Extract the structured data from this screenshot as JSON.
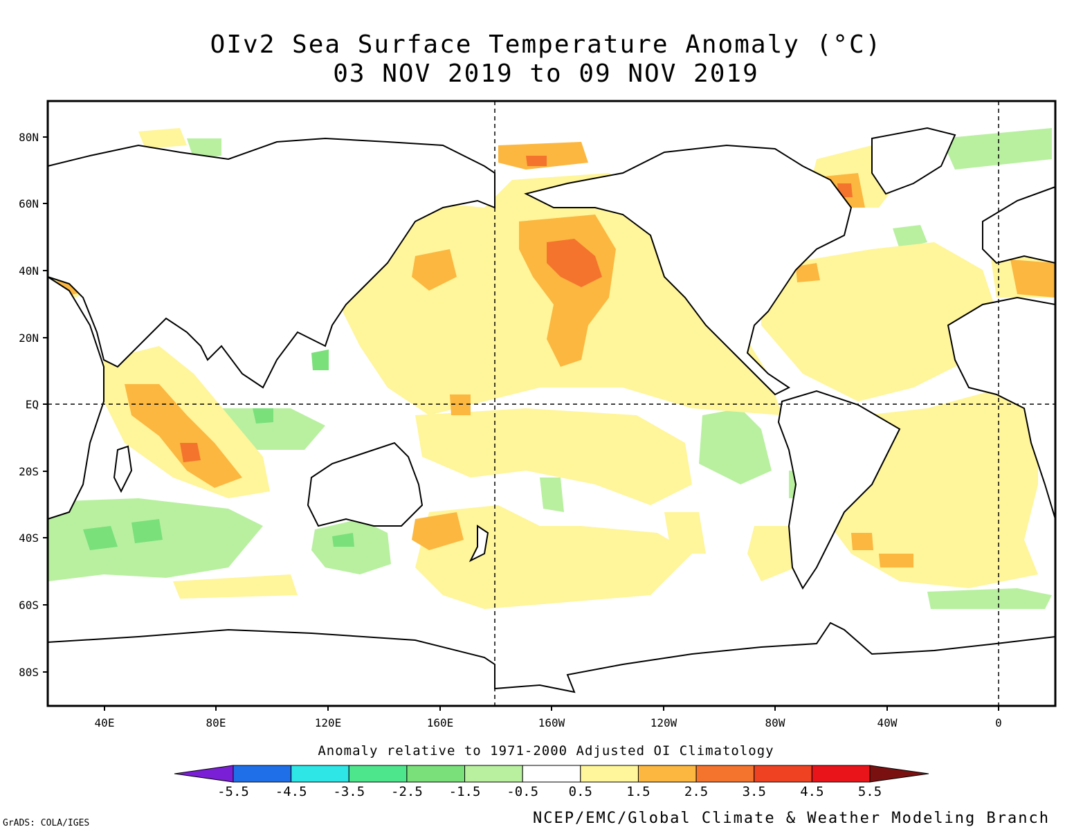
{
  "title": {
    "line1": "OIv2 Sea Surface Temperature Anomaly (°C)",
    "line2": "03 NOV 2019 to 09 NOV 2019"
  },
  "map": {
    "lat_labels": [
      "80N",
      "60N",
      "40N",
      "20N",
      "EQ",
      "20S",
      "40S",
      "60S",
      "80S"
    ],
    "lon_labels": [
      "40E",
      "80E",
      "120E",
      "160E",
      "160W",
      "120W",
      "80W",
      "40W",
      "0"
    ]
  },
  "colorbar": {
    "note": "Anomaly relative to 1971-2000 Adjusted OI Climatology",
    "tick_labels": [
      "-5.5",
      "-4.5",
      "-3.5",
      "-2.5",
      "-1.5",
      "-0.5",
      "0.5",
      "1.5",
      "2.5",
      "3.5",
      "4.5",
      "5.5"
    ],
    "colors": [
      "#7b1fd6",
      "#1f6fe8",
      "#2ee6e6",
      "#4ee68c",
      "#79e07a",
      "#b8f0a0",
      "#ffffff",
      "#fff59a",
      "#fbb740",
      "#f4742e",
      "#ee4222",
      "#e8141a",
      "#7a1010"
    ]
  },
  "credits": {
    "left": "GrADS: COLA/IGES",
    "right": "NCEP/EMC/Global Climate & Weather Modeling Branch"
  }
}
